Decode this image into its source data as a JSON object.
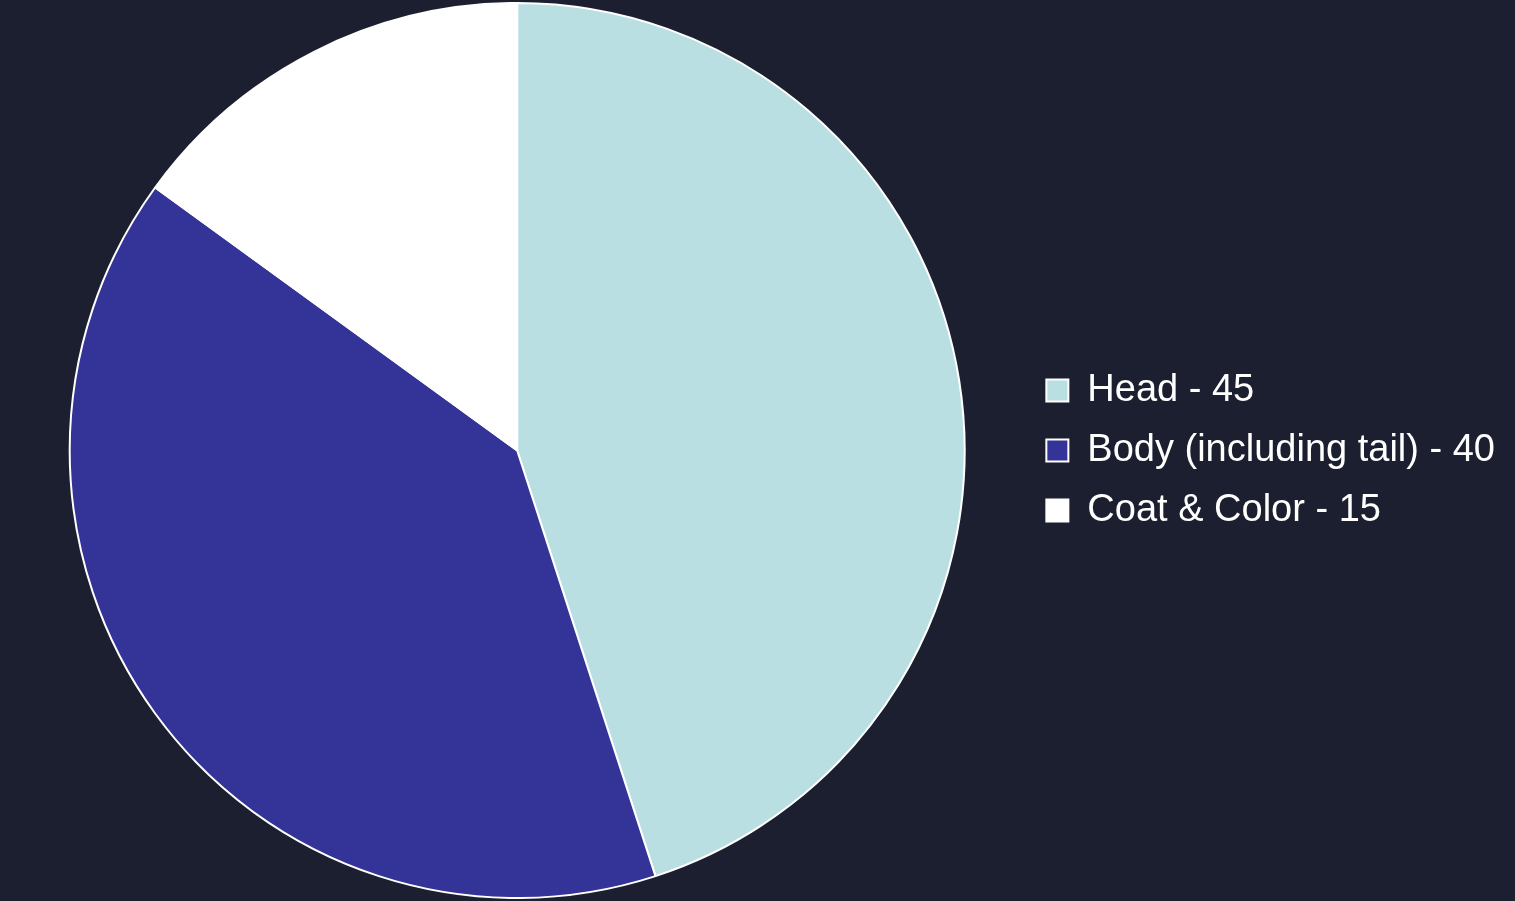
{
  "chart_data": {
    "type": "pie",
    "categories": [
      "Head - 45",
      "Body (including tail) - 40",
      "Coat & Color - 15"
    ],
    "values": [
      45,
      40,
      15
    ],
    "colors": [
      "#b9dfe2",
      "#343397",
      "#ffffff"
    ],
    "legend": "right"
  }
}
